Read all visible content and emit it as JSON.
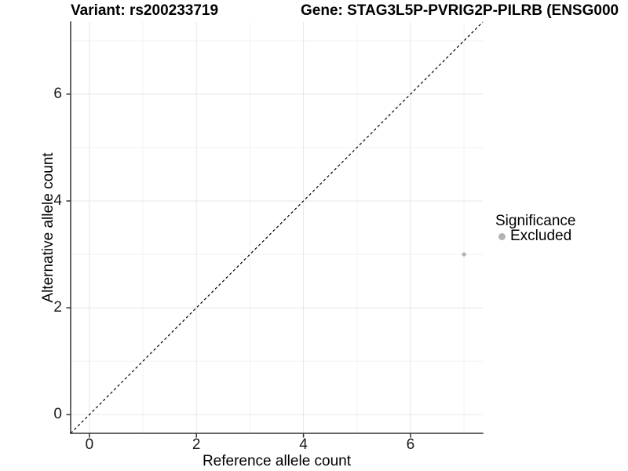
{
  "header": {
    "variant_title": "Variant: rs200233719",
    "gene_title": "Gene: STAG3L5P-PVRIG2P-PILRB (ENSG000"
  },
  "chart_data": {
    "type": "scatter",
    "xlabel": "Reference allele count",
    "ylabel": "Alternative allele count",
    "xlim": [
      -0.35,
      7.35
    ],
    "ylim": [
      -0.35,
      7.35
    ],
    "xticks": [
      0,
      2,
      4,
      6
    ],
    "yticks": [
      0,
      2,
      4,
      6
    ],
    "minor_gridlines_x": [
      1,
      3,
      5,
      7
    ],
    "minor_gridlines_y": [
      1,
      3,
      5,
      7
    ],
    "grid": "on",
    "points": [
      {
        "x": 7,
        "y": 3,
        "series": "Excluded",
        "color": "#b3b3b3"
      }
    ],
    "reference_line": {
      "kind": "identity",
      "slope": 1,
      "intercept": 0,
      "style": "dashed",
      "color": "#000000"
    },
    "legend": {
      "title": "Significance",
      "position": "right",
      "entries": [
        {
          "label": "Excluded",
          "color": "#b3b3b3"
        }
      ]
    },
    "colors": {
      "axis": "#333333",
      "grid_major": "#e7e7e7",
      "grid_minor": "#f2f2f2",
      "tick_text": "#1a1a1a"
    }
  }
}
